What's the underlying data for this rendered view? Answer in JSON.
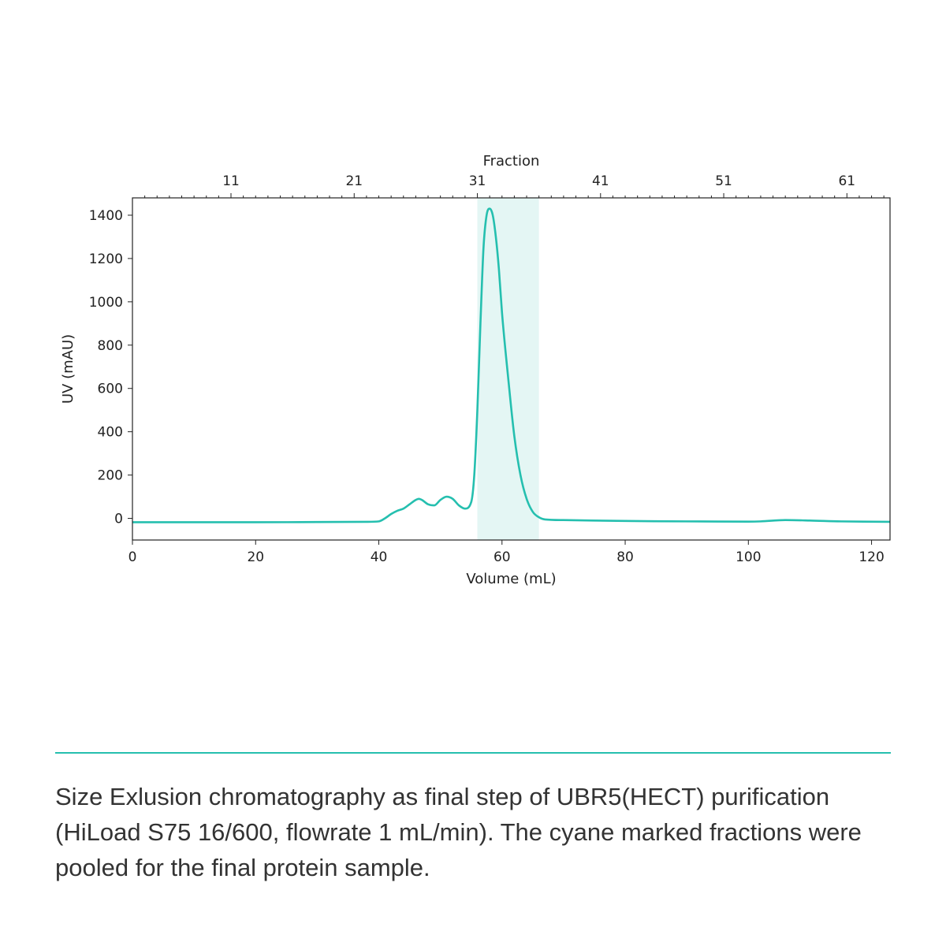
{
  "caption": "Size Exlusion chromatography as final step of UBR5(HECT) purification (HiLoad S75 16/600, flowrate 1 mL/min). The cyane marked fractions were pooled for the final protein sample.",
  "colors": {
    "trace": "#25bfaf",
    "shade": "#e4f6f4",
    "divider": "#25bfaf"
  },
  "chart_data": {
    "type": "line",
    "xlabel": "Volume (mL)",
    "ylabel": "UV (mAU)",
    "x2label": "Fraction",
    "xlim": [
      0,
      123
    ],
    "ylim": [
      -100,
      1480
    ],
    "x_ticks": [
      0,
      20,
      40,
      60,
      80,
      100,
      120
    ],
    "y_ticks": [
      0,
      200,
      400,
      600,
      800,
      1000,
      1200,
      1400
    ],
    "fraction_ticks": [
      {
        "label": "11",
        "volume": 16
      },
      {
        "label": "21",
        "volume": 36
      },
      {
        "label": "31",
        "volume": 56
      },
      {
        "label": "41",
        "volume": 76
      },
      {
        "label": "51",
        "volume": 96
      },
      {
        "label": "61",
        "volume": 116
      }
    ],
    "pooled_region": [
      56,
      66
    ],
    "grid": false,
    "series": [
      {
        "x": [
          0,
          10,
          20,
          30,
          38,
          40,
          41,
          42,
          43,
          44,
          45,
          46,
          46.5,
          47,
          48,
          49,
          50,
          51,
          52,
          53,
          54,
          55,
          55.5,
          56,
          56.5,
          57,
          57.5,
          58,
          58.5,
          59,
          59.5,
          60,
          61,
          62,
          63,
          64,
          65,
          66,
          67,
          70,
          80,
          90,
          100,
          102,
          106,
          110,
          115,
          123
        ],
        "y": [
          -18,
          -18,
          -18,
          -17,
          -16,
          -14,
          0,
          20,
          35,
          45,
          65,
          85,
          90,
          85,
          65,
          60,
          85,
          100,
          90,
          60,
          45,
          75,
          200,
          500,
          900,
          1250,
          1400,
          1430,
          1400,
          1300,
          1150,
          950,
          650,
          380,
          200,
          90,
          30,
          5,
          -5,
          -8,
          -12,
          -14,
          -15,
          -14,
          -8,
          -10,
          -14,
          -16
        ]
      }
    ]
  }
}
